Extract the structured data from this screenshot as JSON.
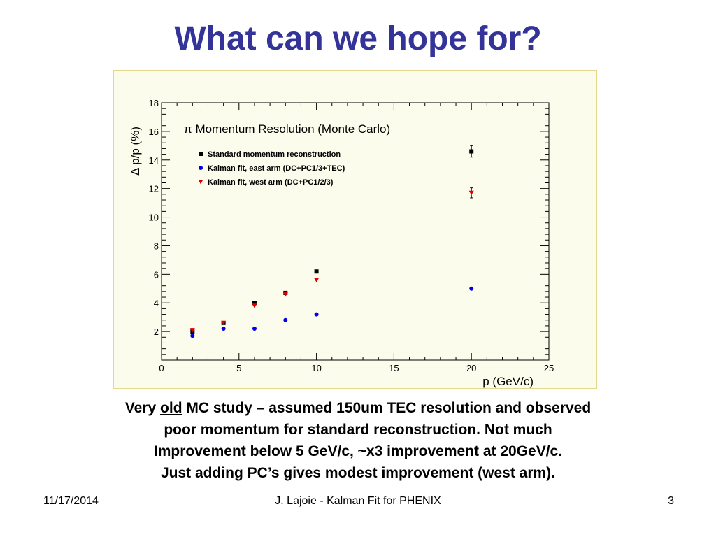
{
  "slide": {
    "title": "What can we hope for?"
  },
  "caption": {
    "line1_prefix": "Very ",
    "line1_underlined": "old",
    "line1_suffix": " MC study – assumed 150um TEC resolution and observed",
    "line2": "poor momentum for standard reconstruction. Not much",
    "line3": "Improvement below 5 GeV/c,  ~x3 improvement at 20GeV/c.",
    "line4": "Just adding PC’s gives modest improvement (west arm)."
  },
  "footer": {
    "date": "11/17/2014",
    "center": "J. Lajoie - Kalman Fit for PHENIX",
    "page": "3"
  },
  "chart_data": {
    "type": "scatter",
    "title": "π Momentum Resolution (Monte Carlo)",
    "xlabel": "p (GeV/c)",
    "ylabel": "Δ p/p (%)",
    "xlim": [
      0,
      25
    ],
    "ylim": [
      0,
      18
    ],
    "xticks": [
      0,
      5,
      10,
      15,
      20,
      25
    ],
    "yticks": [
      2,
      4,
      6,
      8,
      10,
      12,
      14,
      16,
      18
    ],
    "grid": false,
    "legend_position": "top-left",
    "background_color": "#fcfcec",
    "series": [
      {
        "name": "Standard momentum reconstruction",
        "marker": "square",
        "color": "#000000",
        "x": [
          2,
          4,
          6,
          8,
          10,
          20
        ],
        "y": [
          2.0,
          2.6,
          4.0,
          4.7,
          6.2,
          14.6
        ],
        "yerr": [
          0,
          0,
          0,
          0,
          0,
          0.4
        ]
      },
      {
        "name": "Kalman fit, east arm (DC+PC1/3+TEC)",
        "marker": "circle",
        "color": "#0000ee",
        "x": [
          2,
          4,
          6,
          8,
          10,
          20
        ],
        "y": [
          1.7,
          2.2,
          2.2,
          2.8,
          3.2,
          5.0
        ],
        "yerr": [
          0,
          0,
          0,
          0,
          0,
          0
        ]
      },
      {
        "name": "Kalman fit, west arm (DC+PC1/2/3)",
        "marker": "triangle-down",
        "color": "#dd0000",
        "x": [
          2,
          4,
          6,
          8,
          10,
          20
        ],
        "y": [
          2.1,
          2.6,
          3.8,
          4.6,
          5.6,
          11.7
        ],
        "yerr": [
          0,
          0,
          0,
          0,
          0,
          0.35
        ]
      }
    ]
  }
}
